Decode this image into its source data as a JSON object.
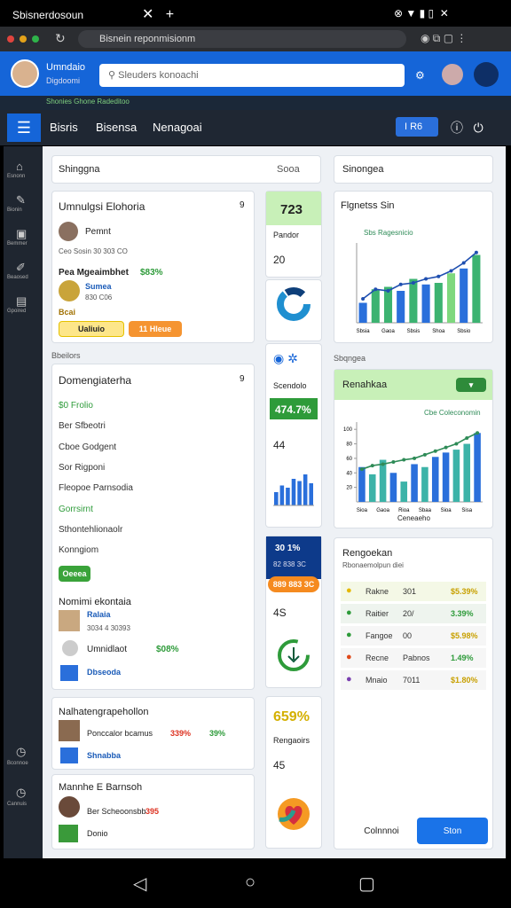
{
  "status_bar": {
    "app": "Sbisnerdosoun"
  },
  "browser": {
    "url": "Bisnein reponmisionm"
  },
  "header": {
    "user_name": "Umndaio",
    "user_role": "Digdoomi",
    "search": "Sleuders konoachi",
    "notice": "Shonies   Ghone   Radeditoo"
  },
  "nav": {
    "items": [
      "Bisris",
      "Bisensa",
      "Nenagoai"
    ],
    "badge": "I R6"
  },
  "sidebar": {
    "items": [
      "Esnonn",
      "Bionin",
      "Bemmer",
      "Beaosed",
      "Gpoired"
    ],
    "bottom": [
      "Bconnoe",
      "Cannuis"
    ]
  },
  "toolbar": {
    "search": "Shinggna",
    "filter": "Sooa",
    "right_search": "Sinongea"
  },
  "cards": [
    {
      "title": "Umnulgsi Elohoria",
      "count": "9",
      "person": "Pemnt",
      "sub": "Ceo Sosin 30 303 CO",
      "line": "Pea Mgeaimbhet",
      "line_value": "$83%",
      "item": "Sumea",
      "item_sub": "830 C06",
      "tag": "Bcai",
      "buttons": [
        "Ualiuio",
        "11 Hleue"
      ]
    },
    {
      "section": "Bbeilors",
      "title": "Domengiaterha",
      "count": "9",
      "fields": [
        "$0 Frolio",
        "Ber Sfbeotri",
        "Cboe Godgent",
        "Sor Rigponi",
        "Fleopoe Parnsodia",
        "Gorrsirnt",
        "Sthontehlionaolr",
        "Konngiom"
      ],
      "button": "Oeeea",
      "sub_title": "Nomimi ekontaia",
      "person": "Ralaia",
      "person_sub": "3034 4 30393",
      "person2": "Umnidlaot",
      "person2_value": "$08%",
      "item": "Dbseoda"
    },
    {
      "title": "Nalhatengrapehollon",
      "person": "Ponccalor bcamus",
      "value1": "339%",
      "value2": "39%",
      "item": "Shnabba"
    },
    {
      "title": "Mannhe E Barnsoh",
      "person": "Ber Scheoonsbb",
      "value": "395",
      "item": "Donio"
    }
  ],
  "tiles": [
    {
      "value": "723",
      "label": "Pandor",
      "number": "20"
    },
    {
      "label": "Scendolo",
      "value": "474.7%",
      "number": "44"
    },
    {
      "value": "30 1%",
      "sub": "82 838 3C",
      "badge": "889 883 3C",
      "number": "4S"
    },
    {
      "value": "659%",
      "label": "Rengaoirs",
      "number": "45"
    }
  ],
  "mini_chart": {
    "type": "bar",
    "values": [
      30,
      45,
      40,
      60,
      55,
      70,
      50
    ],
    "color": "#2a6fdb",
    "ylim": [
      0,
      80
    ]
  },
  "chart_data": [
    {
      "type": "bar",
      "title": "Flgnetss Sin",
      "legend": "Sbs Ragesnicio",
      "categories": [
        "Sbsia",
        null,
        "Gaoa",
        null,
        "Sbsis",
        null,
        "Shoa",
        null,
        "Sbsio",
        null
      ],
      "values": [
        25,
        42,
        45,
        40,
        55,
        48,
        50,
        62,
        68,
        85
      ],
      "colors": [
        "#2a6fdb",
        "#3cb371",
        "#3cb371",
        "#2a6fdb",
        "#3cb371",
        "#2a6fdb",
        "#3cb371",
        "#7ed87e",
        "#2a6fdb",
        "#3cb371"
      ],
      "line": {
        "values": [
          30,
          42,
          40,
          48,
          50,
          55,
          58,
          65,
          75,
          88
        ],
        "color": "#1f4fb0"
      },
      "ylim": [
        0,
        100
      ]
    },
    {
      "type": "bar",
      "title": "Renahkaa",
      "legend": "Cbe Coleconomin",
      "x_label": "Ceneaeho",
      "categories": [
        "Sioa",
        null,
        "Gaoa",
        null,
        "Rioa",
        null,
        "Sbaa",
        null,
        "Sioa",
        null,
        "Sisa",
        null
      ],
      "values": [
        48,
        38,
        58,
        40,
        28,
        52,
        48,
        62,
        68,
        72,
        80,
        95
      ],
      "colors": [
        "#2a6fdb",
        "#3cb3a8",
        "#3cb3a8",
        "#2a6fdb",
        "#3cb3a8",
        "#2a6fdb",
        "#3cb3a8",
        "#2a6fdb",
        "#2a6fdb",
        "#3cb3a8",
        "#3cb3a8",
        "#2a6fdb"
      ],
      "line": {
        "values": [
          45,
          50,
          52,
          55,
          58,
          60,
          65,
          70,
          75,
          80,
          88,
          95
        ],
        "color": "#2e8b57"
      },
      "ylim": [
        0,
        110
      ],
      "yticks": [
        20,
        40,
        60,
        80,
        100
      ]
    }
  ],
  "list": {
    "section": "Sbqngea",
    "title": "Rengoekan",
    "subtitle": "Rbonaemolpun diei",
    "rows": [
      [
        "Rakne",
        "301",
        "$5.39%"
      ],
      [
        "Raitier",
        "20/",
        "3.39%"
      ],
      [
        "Fangoe",
        "00",
        "$5.98%"
      ],
      [
        "Recne",
        "Pabnos",
        "1.49%"
      ],
      [
        "Mnaio",
        "7011",
        "$1.80%"
      ]
    ],
    "buttons": [
      "Colnnnoi",
      "Ston"
    ]
  }
}
